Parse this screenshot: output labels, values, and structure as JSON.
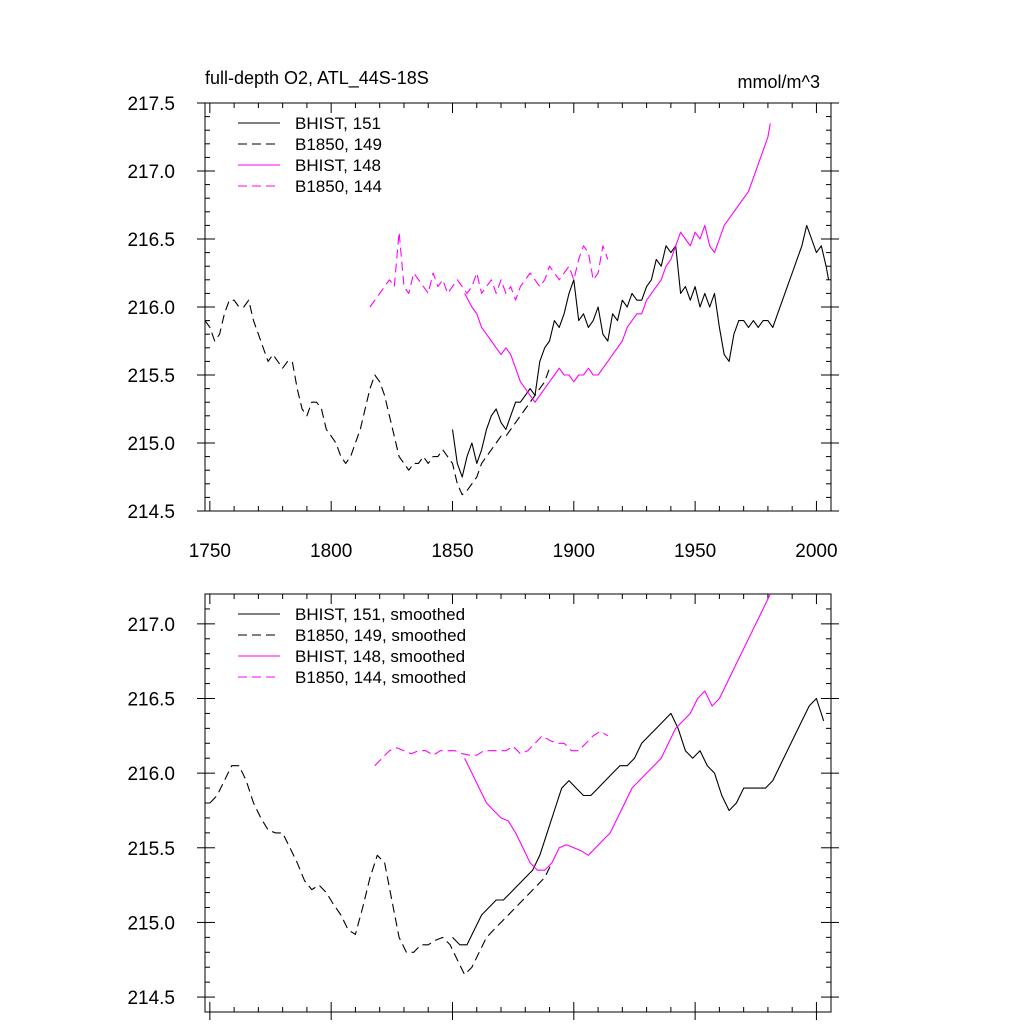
{
  "chart_data": [
    {
      "type": "line",
      "title": "full-depth O2, ATL_44S-18S",
      "units": "mmol/m^3",
      "xlim": [
        1748,
        2006
      ],
      "ylim": [
        214.5,
        217.5
      ],
      "x_ticks": [
        "1750",
        "1800",
        "1850",
        "1900",
        "1950",
        "2000"
      ],
      "y_ticks": [
        "214.5",
        "215.0",
        "215.5",
        "216.0",
        "216.5",
        "217.0",
        "217.5"
      ],
      "legend_position": "top-left",
      "series": [
        {
          "name": "BHIST, 151",
          "color": "#000000",
          "dash": "solid",
          "x": [
            1850,
            1852,
            1854,
            1856,
            1858,
            1860,
            1862,
            1864,
            1866,
            1868,
            1870,
            1872,
            1874,
            1876,
            1878,
            1880,
            1882,
            1884,
            1886,
            1888,
            1890,
            1892,
            1894,
            1896,
            1898,
            1900,
            1902,
            1904,
            1906,
            1908,
            1910,
            1912,
            1914,
            1916,
            1918,
            1920,
            1922,
            1924,
            1926,
            1928,
            1930,
            1932,
            1934,
            1936,
            1938,
            1940,
            1942,
            1944,
            1946,
            1948,
            1950,
            1952,
            1954,
            1956,
            1958,
            1960,
            1962,
            1964,
            1966,
            1968,
            1970,
            1972,
            1974,
            1976,
            1978,
            1980,
            1982,
            1984,
            1986,
            1988,
            1990,
            1992,
            1994,
            1996,
            1998,
            2000,
            2002,
            2004,
            2005
          ],
          "y": [
            215.1,
            214.85,
            214.75,
            214.9,
            215.0,
            214.85,
            214.95,
            215.1,
            215.2,
            215.25,
            215.15,
            215.1,
            215.2,
            215.3,
            215.3,
            215.35,
            215.4,
            215.35,
            215.6,
            215.7,
            215.75,
            215.9,
            215.85,
            215.95,
            216.1,
            216.2,
            215.9,
            215.95,
            215.85,
            215.9,
            216.0,
            215.8,
            215.75,
            215.95,
            215.9,
            216.05,
            216.0,
            216.1,
            216.05,
            216.05,
            216.15,
            216.2,
            216.35,
            216.3,
            216.45,
            216.4,
            216.45,
            216.1,
            216.15,
            216.05,
            216.15,
            216.0,
            216.1,
            216.0,
            216.1,
            215.85,
            215.65,
            215.6,
            215.8,
            215.9,
            215.9,
            215.85,
            215.9,
            215.85,
            215.9,
            215.9,
            215.85,
            215.95,
            216.05,
            216.15,
            216.25,
            216.35,
            216.45,
            216.6,
            216.5,
            216.4,
            216.45,
            216.3,
            216.2
          ]
        },
        {
          "name": "B1850, 149",
          "color": "#000000",
          "dash": "dashed",
          "x": [
            1748,
            1750,
            1752,
            1754,
            1756,
            1758,
            1760,
            1762,
            1764,
            1766,
            1768,
            1770,
            1772,
            1774,
            1776,
            1778,
            1780,
            1782,
            1784,
            1786,
            1788,
            1790,
            1792,
            1794,
            1796,
            1798,
            1800,
            1802,
            1804,
            1806,
            1808,
            1810,
            1812,
            1814,
            1816,
            1818,
            1820,
            1822,
            1824,
            1826,
            1828,
            1830,
            1832,
            1834,
            1836,
            1838,
            1840,
            1842,
            1844,
            1846,
            1848,
            1850,
            1852,
            1854,
            1856,
            1858,
            1860,
            1862,
            1864,
            1866,
            1868,
            1870,
            1872,
            1874,
            1876,
            1878,
            1880,
            1882,
            1884,
            1886,
            1888,
            1890
          ],
          "y": [
            215.9,
            215.85,
            215.75,
            215.8,
            215.95,
            216.05,
            216.05,
            216.0,
            216.0,
            216.05,
            215.9,
            215.8,
            215.7,
            215.6,
            215.65,
            215.6,
            215.55,
            215.6,
            215.6,
            215.4,
            215.25,
            215.2,
            215.3,
            215.3,
            215.25,
            215.1,
            215.05,
            215.0,
            214.9,
            214.85,
            214.9,
            215.0,
            215.1,
            215.25,
            215.4,
            215.5,
            215.45,
            215.35,
            215.2,
            215.05,
            214.9,
            214.85,
            214.8,
            214.85,
            214.85,
            214.9,
            214.85,
            214.9,
            214.9,
            214.95,
            214.9,
            214.85,
            214.7,
            214.62,
            214.65,
            214.7,
            214.75,
            214.85,
            214.9,
            214.95,
            215.0,
            215.05,
            215.05,
            215.1,
            215.15,
            215.2,
            215.25,
            215.3,
            215.35,
            215.4,
            215.45,
            215.55
          ]
        },
        {
          "name": "BHIST, 148",
          "color": "#ff00ff",
          "dash": "solid",
          "x": [
            1855,
            1858,
            1860,
            1862,
            1864,
            1866,
            1868,
            1870,
            1872,
            1874,
            1876,
            1878,
            1880,
            1882,
            1884,
            1886,
            1888,
            1890,
            1892,
            1894,
            1896,
            1898,
            1900,
            1902,
            1904,
            1906,
            1908,
            1910,
            1912,
            1914,
            1916,
            1918,
            1920,
            1922,
            1924,
            1926,
            1928,
            1930,
            1932,
            1934,
            1936,
            1938,
            1940,
            1942,
            1944,
            1946,
            1948,
            1950,
            1952,
            1954,
            1956,
            1958,
            1960,
            1962,
            1964,
            1966,
            1968,
            1970,
            1972,
            1974,
            1976,
            1978,
            1980,
            1981
          ],
          "y": [
            216.1,
            216.0,
            215.95,
            215.85,
            215.8,
            215.75,
            215.7,
            215.65,
            215.7,
            215.65,
            215.55,
            215.45,
            215.4,
            215.35,
            215.3,
            215.35,
            215.4,
            215.45,
            215.5,
            215.55,
            215.5,
            215.5,
            215.45,
            215.5,
            215.5,
            215.55,
            215.5,
            215.5,
            215.55,
            215.6,
            215.65,
            215.7,
            215.75,
            215.85,
            215.9,
            215.95,
            215.95,
            216.05,
            216.1,
            216.15,
            216.2,
            216.3,
            216.35,
            216.45,
            216.55,
            216.5,
            216.45,
            216.55,
            216.5,
            216.6,
            216.45,
            216.4,
            216.5,
            216.6,
            216.65,
            216.7,
            216.75,
            216.8,
            216.85,
            216.95,
            217.05,
            217.15,
            217.25,
            217.35
          ]
        },
        {
          "name": "B1850, 144",
          "color": "#ff00ff",
          "dash": "dashed",
          "x": [
            1816,
            1818,
            1820,
            1822,
            1824,
            1826,
            1828,
            1830,
            1832,
            1834,
            1836,
            1838,
            1840,
            1842,
            1844,
            1846,
            1848,
            1850,
            1852,
            1854,
            1856,
            1858,
            1860,
            1862,
            1864,
            1866,
            1868,
            1870,
            1872,
            1874,
            1876,
            1878,
            1880,
            1882,
            1884,
            1886,
            1888,
            1890,
            1892,
            1894,
            1896,
            1898,
            1900,
            1902,
            1904,
            1906,
            1908,
            1910,
            1912,
            1914
          ],
          "y": [
            216.0,
            216.05,
            216.1,
            216.15,
            216.2,
            216.15,
            216.55,
            216.15,
            216.1,
            216.25,
            216.2,
            216.15,
            216.1,
            216.25,
            216.15,
            216.2,
            216.1,
            216.15,
            216.2,
            216.15,
            216.1,
            216.15,
            216.25,
            216.1,
            216.15,
            216.2,
            216.1,
            216.2,
            216.1,
            216.15,
            216.05,
            216.15,
            216.2,
            216.25,
            216.2,
            216.15,
            216.2,
            216.3,
            216.25,
            216.2,
            216.25,
            216.3,
            216.2,
            216.35,
            216.45,
            216.4,
            216.2,
            216.25,
            216.45,
            216.35
          ]
        }
      ]
    },
    {
      "type": "line",
      "xlim": [
        1748,
        2006
      ],
      "ylim": [
        214.4,
        217.2
      ],
      "y_ticks": [
        "214.5",
        "215.0",
        "215.5",
        "216.0",
        "216.5",
        "217.0"
      ],
      "legend_position": "top-left",
      "series": [
        {
          "name": "BHIST, 151, smoothed",
          "color": "#000000",
          "dash": "solid",
          "x": [
            1850,
            1853,
            1856,
            1859,
            1862,
            1865,
            1868,
            1871,
            1874,
            1877,
            1880,
            1883,
            1886,
            1889,
            1892,
            1895,
            1898,
            1901,
            1904,
            1907,
            1910,
            1913,
            1916,
            1919,
            1922,
            1925,
            1928,
            1931,
            1934,
            1937,
            1940,
            1943,
            1946,
            1949,
            1952,
            1955,
            1958,
            1961,
            1964,
            1967,
            1970,
            1973,
            1976,
            1979,
            1982,
            1985,
            1988,
            1991,
            1994,
            1997,
            2000,
            2003
          ],
          "y": [
            214.9,
            214.85,
            214.85,
            214.95,
            215.05,
            215.1,
            215.15,
            215.15,
            215.2,
            215.25,
            215.3,
            215.35,
            215.45,
            215.6,
            215.75,
            215.9,
            215.95,
            215.9,
            215.85,
            215.85,
            215.9,
            215.95,
            216.0,
            216.05,
            216.05,
            216.1,
            216.2,
            216.25,
            216.3,
            216.35,
            216.4,
            216.3,
            216.15,
            216.1,
            216.15,
            216.05,
            216.0,
            215.85,
            215.75,
            215.8,
            215.9,
            215.9,
            215.9,
            215.9,
            215.95,
            216.05,
            216.15,
            216.25,
            216.35,
            216.45,
            216.5,
            216.35
          ]
        },
        {
          "name": "B1850, 149, smoothed",
          "color": "#000000",
          "dash": "dashed",
          "x": [
            1750,
            1753,
            1756,
            1759,
            1762,
            1765,
            1768,
            1771,
            1774,
            1777,
            1780,
            1783,
            1786,
            1789,
            1792,
            1795,
            1798,
            1801,
            1804,
            1807,
            1810,
            1813,
            1816,
            1819,
            1822,
            1825,
            1828,
            1831,
            1834,
            1837,
            1840,
            1843,
            1846,
            1849,
            1852,
            1855,
            1858,
            1861,
            1864,
            1867,
            1870,
            1873,
            1876,
            1879,
            1882,
            1885,
            1888,
            1891
          ],
          "y": [
            215.8,
            215.85,
            215.95,
            216.05,
            216.05,
            215.95,
            215.8,
            215.7,
            215.62,
            215.6,
            215.6,
            215.5,
            215.4,
            215.28,
            215.22,
            215.25,
            215.2,
            215.12,
            215.05,
            214.95,
            214.92,
            215.1,
            215.3,
            215.45,
            215.4,
            215.15,
            214.9,
            214.8,
            214.8,
            214.85,
            214.85,
            214.88,
            214.9,
            214.85,
            214.75,
            214.65,
            214.7,
            214.8,
            214.9,
            214.95,
            215.0,
            215.05,
            215.1,
            215.15,
            215.2,
            215.25,
            215.3,
            215.4
          ]
        },
        {
          "name": "BHIST, 148, smoothed",
          "color": "#ff00ff",
          "dash": "solid",
          "x": [
            1855,
            1858,
            1861,
            1864,
            1867,
            1870,
            1873,
            1876,
            1879,
            1882,
            1885,
            1888,
            1891,
            1894,
            1897,
            1900,
            1903,
            1906,
            1909,
            1912,
            1915,
            1918,
            1921,
            1924,
            1927,
            1930,
            1933,
            1936,
            1939,
            1942,
            1945,
            1948,
            1951,
            1954,
            1957,
            1960,
            1963,
            1966,
            1969,
            1972,
            1975,
            1978,
            1981
          ],
          "y": [
            216.1,
            216.0,
            215.9,
            215.8,
            215.75,
            215.7,
            215.68,
            215.6,
            215.5,
            215.4,
            215.35,
            215.35,
            215.4,
            215.5,
            215.52,
            215.5,
            215.48,
            215.45,
            215.5,
            215.55,
            215.6,
            215.7,
            215.8,
            215.9,
            215.95,
            216.0,
            216.05,
            216.1,
            216.2,
            216.3,
            216.35,
            216.4,
            216.5,
            216.55,
            216.45,
            216.5,
            216.6,
            216.7,
            216.8,
            216.9,
            217.0,
            217.1,
            217.2
          ]
        },
        {
          "name": "B1850, 144, smoothed",
          "color": "#ff00ff",
          "dash": "dashed",
          "x": [
            1818,
            1821,
            1824,
            1827,
            1830,
            1833,
            1836,
            1839,
            1842,
            1845,
            1848,
            1851,
            1854,
            1857,
            1860,
            1863,
            1866,
            1869,
            1872,
            1875,
            1878,
            1881,
            1884,
            1887,
            1890,
            1893,
            1896,
            1899,
            1902,
            1905,
            1908,
            1911,
            1914
          ],
          "y": [
            216.05,
            216.1,
            216.15,
            216.17,
            216.15,
            216.13,
            216.15,
            216.15,
            216.12,
            216.15,
            216.15,
            216.15,
            216.13,
            216.12,
            216.12,
            216.15,
            216.15,
            216.15,
            216.15,
            216.18,
            216.13,
            216.15,
            216.2,
            216.25,
            216.22,
            216.2,
            216.2,
            216.15,
            216.15,
            216.2,
            216.25,
            216.28,
            216.25
          ]
        }
      ]
    }
  ]
}
